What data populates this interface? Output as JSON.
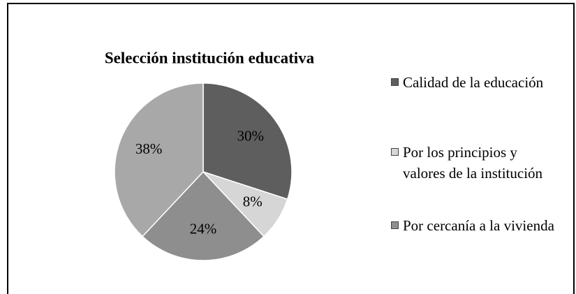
{
  "chart_data": {
    "type": "pie",
    "title": "Selección institución educativa",
    "categories": [
      "Calidad de la educación",
      "Por los principios y valores de la institución",
      "Por cercanía a la vivienda",
      null
    ],
    "values": [
      30,
      8,
      24,
      38
    ],
    "value_labels": [
      "30%",
      "8%",
      "24%",
      "38%"
    ],
    "colors": [
      "#5e5e5e",
      "#d6d6d6",
      "#8e8e8e",
      "#a8a8a8"
    ],
    "legend": "right"
  }
}
